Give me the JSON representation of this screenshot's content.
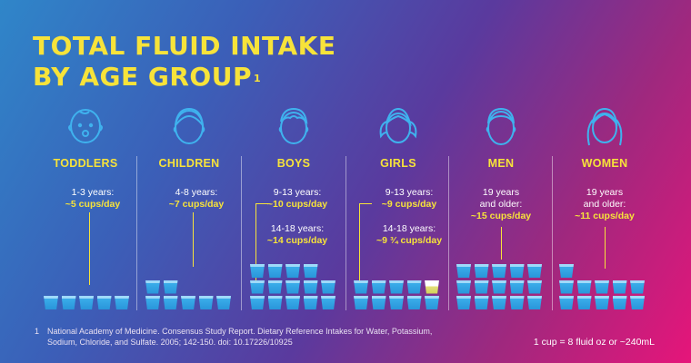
{
  "title": {
    "line1": "TOTAL FLUID INTAKE",
    "line2": "BY AGE GROUP",
    "footnote_marker": "1"
  },
  "groups": [
    {
      "label": "TODDLERS",
      "icon": "toddler-face-icon",
      "entries": [
        {
          "age": "1-3 years:",
          "value": "~5 cups/day"
        }
      ]
    },
    {
      "label": "CHILDREN",
      "icon": "child-face-icon",
      "entries": [
        {
          "age": "4-8 years:",
          "value": "~7 cups/day"
        }
      ]
    },
    {
      "label": "BOYS",
      "icon": "boy-face-icon",
      "entries": [
        {
          "age": "9-13 years:",
          "value": "~10 cups/day"
        },
        {
          "age": "14-18 years:",
          "value": "~14 cups/day"
        }
      ]
    },
    {
      "label": "GIRLS",
      "icon": "girl-face-icon",
      "entries": [
        {
          "age": "9-13 years:",
          "value": "~9 cups/day"
        },
        {
          "age": "14-18 years:",
          "value": "~9 ¾ cups/day"
        }
      ]
    },
    {
      "label": "MEN",
      "icon": "man-face-icon",
      "entries": [
        {
          "age_line1": "19 years",
          "age_line2": "and older:",
          "value": "~15 cups/day"
        }
      ]
    },
    {
      "label": "WOMEN",
      "icon": "woman-face-icon",
      "entries": [
        {
          "age_line1": "19 years",
          "age_line2": "and older:",
          "value": "~11 cups/day"
        }
      ]
    }
  ],
  "cups": {
    "toddlers": 5,
    "children": 7,
    "boys_9_13": 10,
    "boys_14_18": 14,
    "girls_9_13": 9,
    "girls_14_18": 9.75,
    "men": 15,
    "women": 11
  },
  "footnote": {
    "number": "1",
    "text": "National Academy of Medicine. Consensus Study Report. Dietary Reference Intakes for Water, Potassium, Sodium, Chloride, and Sulfate. 2005; 142-150. doi: 10.17226/10925"
  },
  "conversion": "1 cup = 8 fluid oz or ~240mL",
  "colors": {
    "accent_yellow": "#f7e33a",
    "cup_blue": "#2996da",
    "gradient_start": "#2f86c9",
    "gradient_end": "#e6157a"
  }
}
